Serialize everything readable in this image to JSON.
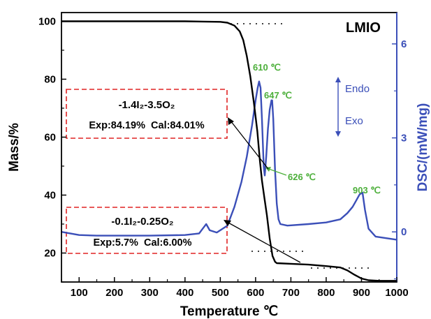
{
  "chart_data": {
    "type": "line",
    "title": "LMIO",
    "xlabel": "Temperature ℃",
    "ylabel_left": "Mass/%",
    "ylabel_right": "DSC/(mW/mg)",
    "xlim": [
      50,
      1000
    ],
    "ylim_left": [
      10,
      103
    ],
    "ylim_right": [
      -1.6,
      7.0
    ],
    "x_ticks": [
      100,
      200,
      300,
      400,
      500,
      600,
      700,
      800,
      900,
      1000
    ],
    "y_ticks_left": [
      20,
      40,
      60,
      80,
      100
    ],
    "y_ticks_right": [
      0,
      3,
      6
    ],
    "series": [
      {
        "axis": "left",
        "color": "#000000",
        "x": [
          50,
          100,
          200,
          300,
          400,
          450,
          500,
          520,
          540,
          555,
          565,
          575,
          585,
          595,
          605,
          612,
          618,
          625,
          632,
          640,
          648,
          655,
          660,
          700,
          750,
          800,
          840,
          860,
          880,
          900,
          920,
          950,
          1000
        ],
        "y": [
          100,
          100,
          100,
          100,
          100,
          99.9,
          99.8,
          99.5,
          98.5,
          96.5,
          93.5,
          88,
          81,
          72,
          62,
          52,
          45,
          39,
          33,
          25,
          19,
          17,
          16.5,
          16.3,
          16,
          15.5,
          15,
          14,
          12.5,
          11.2,
          10.6,
          10.4,
          10.4
        ]
      },
      {
        "axis": "right",
        "color": "#3b4fb8",
        "x": [
          50,
          100,
          150,
          200,
          300,
          400,
          440,
          450,
          460,
          470,
          490,
          520,
          540,
          560,
          575,
          590,
          600,
          606,
          610,
          614,
          618,
          623,
          626,
          630,
          635,
          640,
          645,
          647,
          650,
          655,
          660,
          665,
          670,
          690,
          750,
          800,
          840,
          860,
          875,
          885,
          895,
          903,
          910,
          920,
          940,
          970,
          1000
        ],
        "y": [
          0,
          -0.1,
          -0.12,
          -0.12,
          -0.12,
          -0.1,
          -0.05,
          0.1,
          0.25,
          0.05,
          -0.02,
          0.2,
          0.8,
          1.6,
          2.4,
          3.4,
          4.2,
          4.6,
          4.8,
          4.6,
          3.6,
          2.1,
          1.8,
          2.4,
          3.3,
          3.9,
          4.2,
          4.2,
          3.6,
          2.0,
          0.9,
          0.4,
          0.25,
          0.2,
          0.25,
          0.3,
          0.4,
          0.6,
          0.8,
          1.0,
          1.2,
          1.25,
          0.7,
          0.1,
          -0.15,
          -0.2,
          -0.25
        ]
      }
    ],
    "annotations": {
      "peak_610": {
        "text": "610 ℃",
        "x": 610,
        "y": 4.8
      },
      "peak_647": {
        "text": "647 ℃",
        "x": 647,
        "y": 4.2
      },
      "valley_626": {
        "text": "626 ℃",
        "x": 626,
        "y": 1.8
      },
      "peak_903": {
        "text": "903 ℃",
        "x": 903,
        "y": 1.25
      },
      "endo": "Endo",
      "exo": "Exo",
      "box_top": {
        "formula": "-1.4I₂-3.5O₂",
        "result": "Exp:84.19%  Cal:84.01%"
      },
      "box_bottom": {
        "formula": "-0.1I₂-0.25O₂",
        "result": "Exp:5.7%  Cal:6.00%"
      }
    },
    "colors": {
      "mass": "#000000",
      "dsc": "#3b4fb8",
      "annotation": "#4caf3a",
      "box": "#e02424",
      "right_axis": "#3b4fb8"
    }
  }
}
